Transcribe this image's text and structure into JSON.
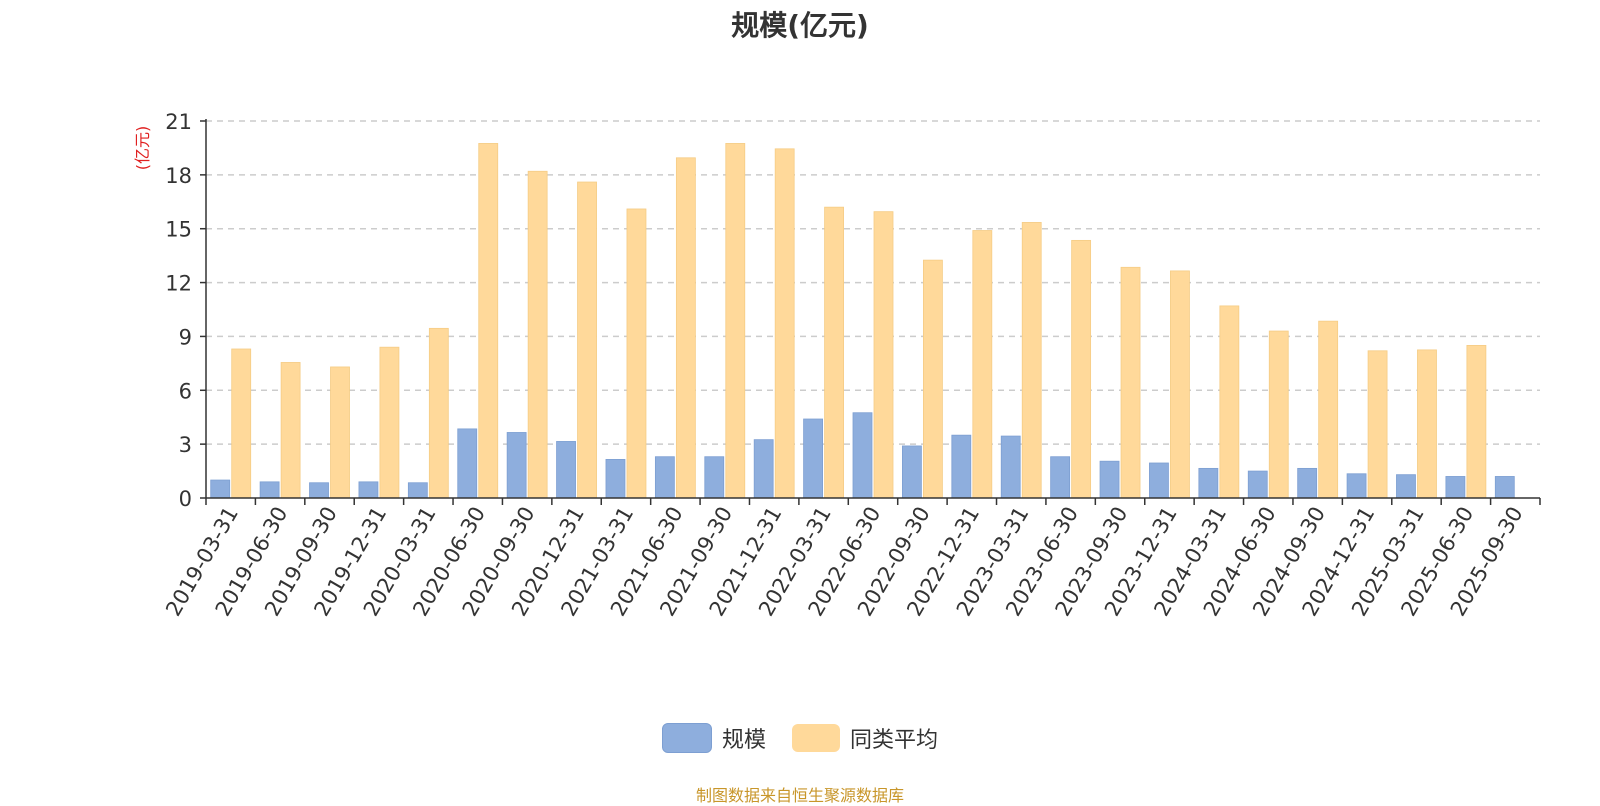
{
  "chart_data": {
    "type": "bar",
    "title": "规模(亿元)",
    "ylabel": "(亿元)",
    "ylim": [
      0,
      21
    ],
    "yticks": [
      0,
      3,
      6,
      9,
      12,
      15,
      18,
      21
    ],
    "grid": true,
    "legend_position": "bottom",
    "categories": [
      "2019-03-31",
      "2019-06-30",
      "2019-09-30",
      "2019-12-31",
      "2020-03-31",
      "2020-06-30",
      "2020-09-30",
      "2020-12-31",
      "2021-03-31",
      "2021-06-30",
      "2021-09-30",
      "2021-12-31",
      "2022-03-31",
      "2022-06-30",
      "2022-09-30",
      "2022-12-31",
      "2023-03-31",
      "2023-06-30",
      "2023-09-30",
      "2023-12-31",
      "2024-03-31",
      "2024-06-30",
      "2024-09-30",
      "2024-12-31",
      "2025-03-31",
      "2025-06-30",
      "2025-09-30"
    ],
    "series": [
      {
        "name": "规模",
        "color": "#8eaedd",
        "values": [
          1.0,
          0.9,
          0.85,
          0.9,
          0.85,
          3.85,
          3.65,
          3.15,
          2.15,
          2.3,
          2.3,
          3.25,
          4.4,
          4.75,
          2.9,
          3.5,
          3.45,
          2.3,
          2.05,
          1.95,
          1.65,
          1.5,
          1.65,
          1.35,
          1.3,
          1.2,
          1.2
        ]
      },
      {
        "name": "同类平均",
        "color": "#ffd99a",
        "values": [
          8.3,
          7.55,
          7.3,
          8.4,
          9.45,
          19.75,
          18.2,
          17.6,
          16.1,
          18.95,
          19.75,
          19.45,
          16.2,
          15.95,
          13.25,
          14.9,
          15.35,
          14.35,
          12.85,
          12.65,
          10.7,
          9.3,
          9.85,
          8.2,
          8.25,
          8.5,
          null
        ]
      }
    ]
  },
  "footer": {
    "source": "制图数据来自恒生聚源数据库"
  }
}
